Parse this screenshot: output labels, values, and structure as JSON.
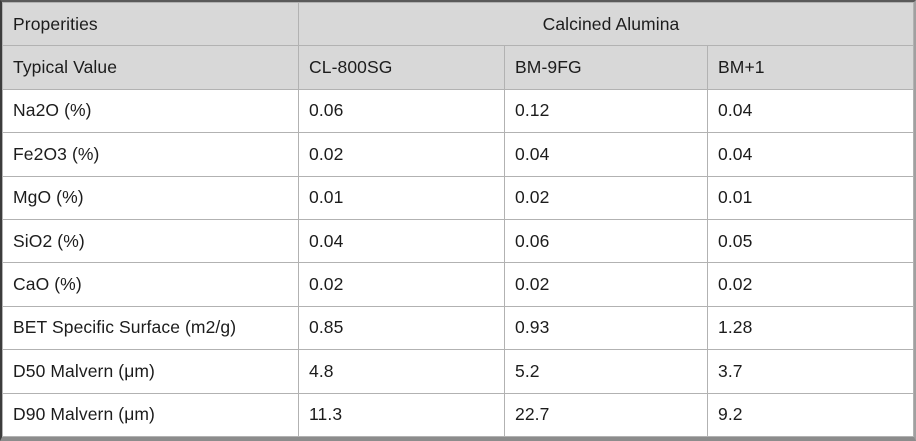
{
  "table": {
    "header": {
      "properties_label": "Properities",
      "group_label": "Calcined Alumina",
      "typical_value_label": "Typical Value",
      "columns": [
        "CL-800SG",
        "BM-9FG",
        "BM+1"
      ]
    },
    "rows": [
      {
        "property": "Na2O (%)",
        "values": [
          "0.06",
          "0.12",
          "0.04"
        ]
      },
      {
        "property": "Fe2O3 (%)",
        "values": [
          "0.02",
          "0.04",
          "0.04"
        ]
      },
      {
        "property": "MgO (%)",
        "values": [
          "0.01",
          "0.02",
          "0.01"
        ]
      },
      {
        "property": "SiO2 (%)",
        "values": [
          "0.04",
          "0.06",
          "0.05"
        ]
      },
      {
        "property": "CaO (%)",
        "values": [
          "0.02",
          "0.02",
          "0.02"
        ]
      },
      {
        "property": "BET Specific Surface (m2/g)",
        "values": [
          "0.85",
          "0.93",
          "1.28"
        ]
      },
      {
        "property": "D50 Malvern (μm)",
        "values": [
          "4.8",
          "5.2",
          "3.7"
        ]
      },
      {
        "property": "D90 Malvern (μm)",
        "values": [
          "11.3",
          "22.7",
          "9.2"
        ]
      }
    ],
    "colors": {
      "header_bg": "#d8d8d8",
      "grid_line": "#b2b2b2",
      "outer_border_dark": "#3c3c3c",
      "outer_border_bottom": "#8c8c8c",
      "text": "#1c1c1c"
    }
  }
}
